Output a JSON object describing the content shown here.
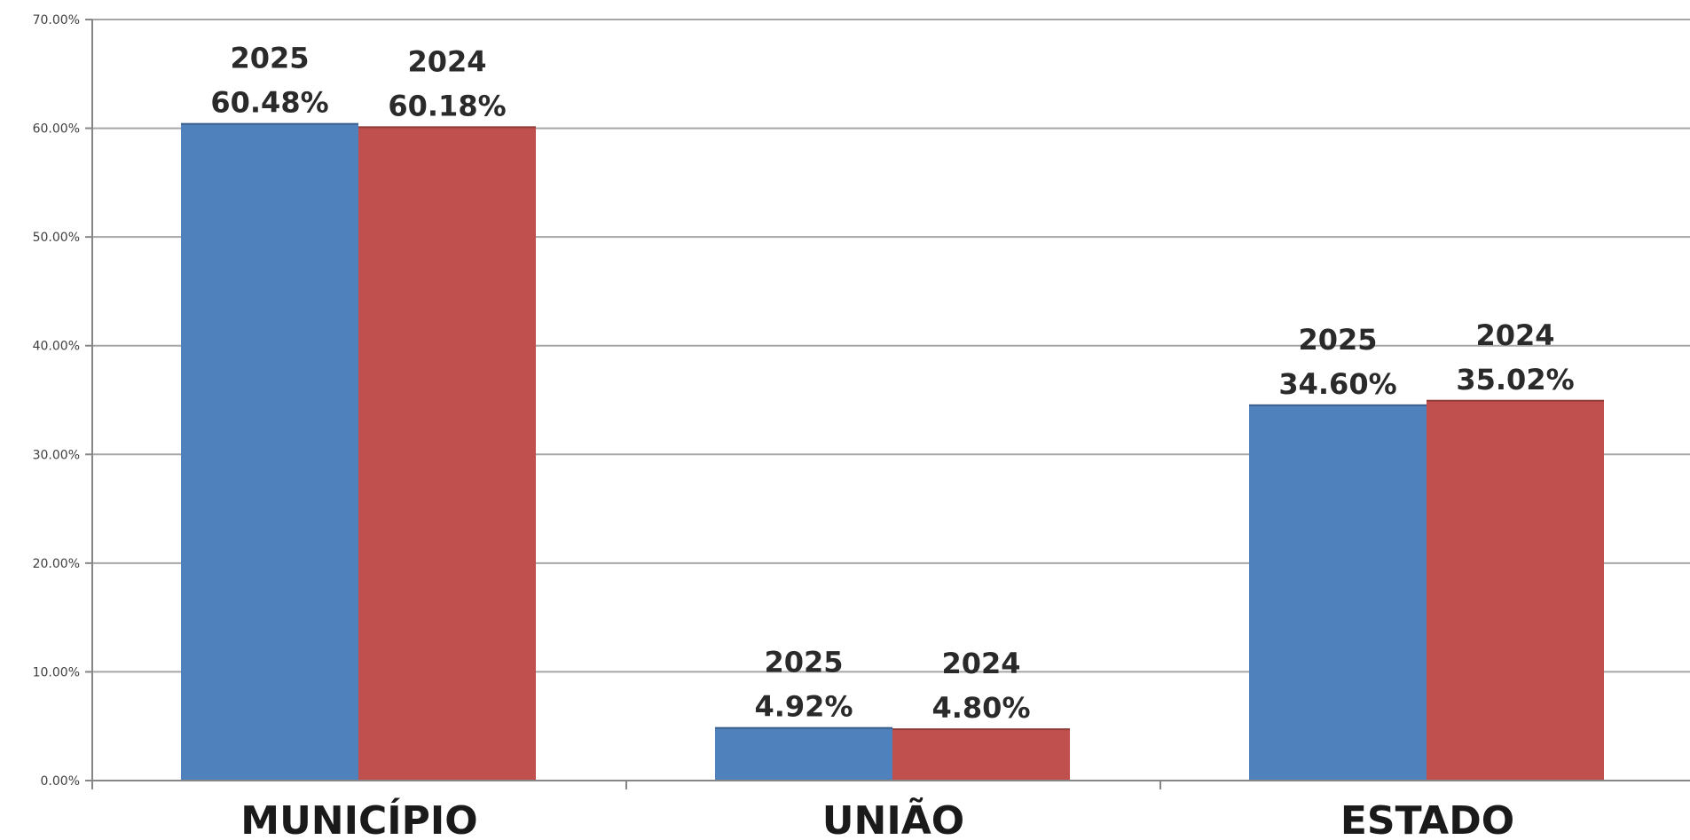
{
  "chart_data": {
    "type": "bar",
    "categories": [
      "MUNICÍPIO",
      "UNIÃO",
      "ESTADO"
    ],
    "series": [
      {
        "name": "2025",
        "color": "#4f81bd",
        "values": [
          60.48,
          4.92,
          34.6
        ]
      },
      {
        "name": "2024",
        "color": "#c0504d",
        "values": [
          60.18,
          4.8,
          35.02
        ]
      }
    ],
    "data_labels": [
      [
        {
          "year": "2025",
          "value": "60.48%"
        },
        {
          "year": "2025",
          "value": "4.92%"
        },
        {
          "year": "2025",
          "value": "34.60%"
        }
      ],
      [
        {
          "year": "2024",
          "value": "60.18%"
        },
        {
          "year": "2024",
          "value": "4.80%"
        },
        {
          "year": "2024",
          "value": "35.02%"
        }
      ]
    ],
    "y_ticks": [
      0,
      10,
      20,
      30,
      40,
      50,
      60,
      70
    ],
    "y_tick_labels": [
      "0.00%",
      "10.00%",
      "20.00%",
      "30.00%",
      "40.00%",
      "50.00%",
      "60.00%",
      "70.00%"
    ],
    "ylim": [
      0,
      70
    ],
    "grid": true,
    "legend": "none"
  }
}
